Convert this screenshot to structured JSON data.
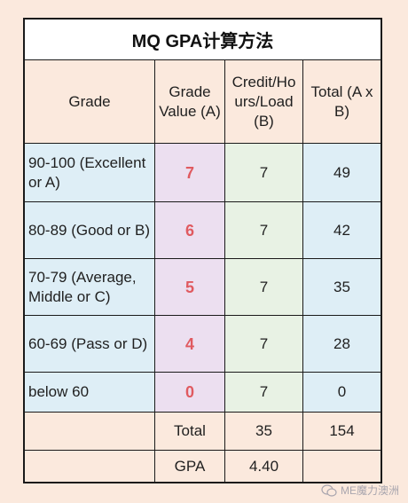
{
  "title": "MQ GPA计算方法",
  "header": {
    "grade": "Grade",
    "grade_value": "Grade Value (A)",
    "credit": "Credit/Ho urs/Load (B)",
    "total": "Total (A x B)"
  },
  "rows": [
    {
      "grade": "90-100 (Excellent or A)",
      "value": "7",
      "credit": "7",
      "total": "49"
    },
    {
      "grade": "80-89 (Good or B)",
      "value": "6",
      "credit": "7",
      "total": "42"
    },
    {
      "grade": "70-79 (Average, Middle or C)",
      "value": "5",
      "credit": "7",
      "total": "35"
    },
    {
      "grade": "60-69 (Pass or D)",
      "value": "4",
      "credit": "7",
      "total": "28"
    },
    {
      "grade": "below 60",
      "value": "0",
      "credit": "7",
      "total": "0"
    }
  ],
  "summary": {
    "total_label": "Total",
    "total_credit": "35",
    "total_points": "154",
    "gpa_label": "GPA",
    "gpa_value": "4.40"
  },
  "watermark": "ME魔力澳洲",
  "colors": {
    "value_red": "#e05a60",
    "page_bg": "#fbe9dd",
    "blue_cell": "#deeef6",
    "green_cell": "#e8f2e4",
    "lavender_cell": "#ecdff0"
  }
}
